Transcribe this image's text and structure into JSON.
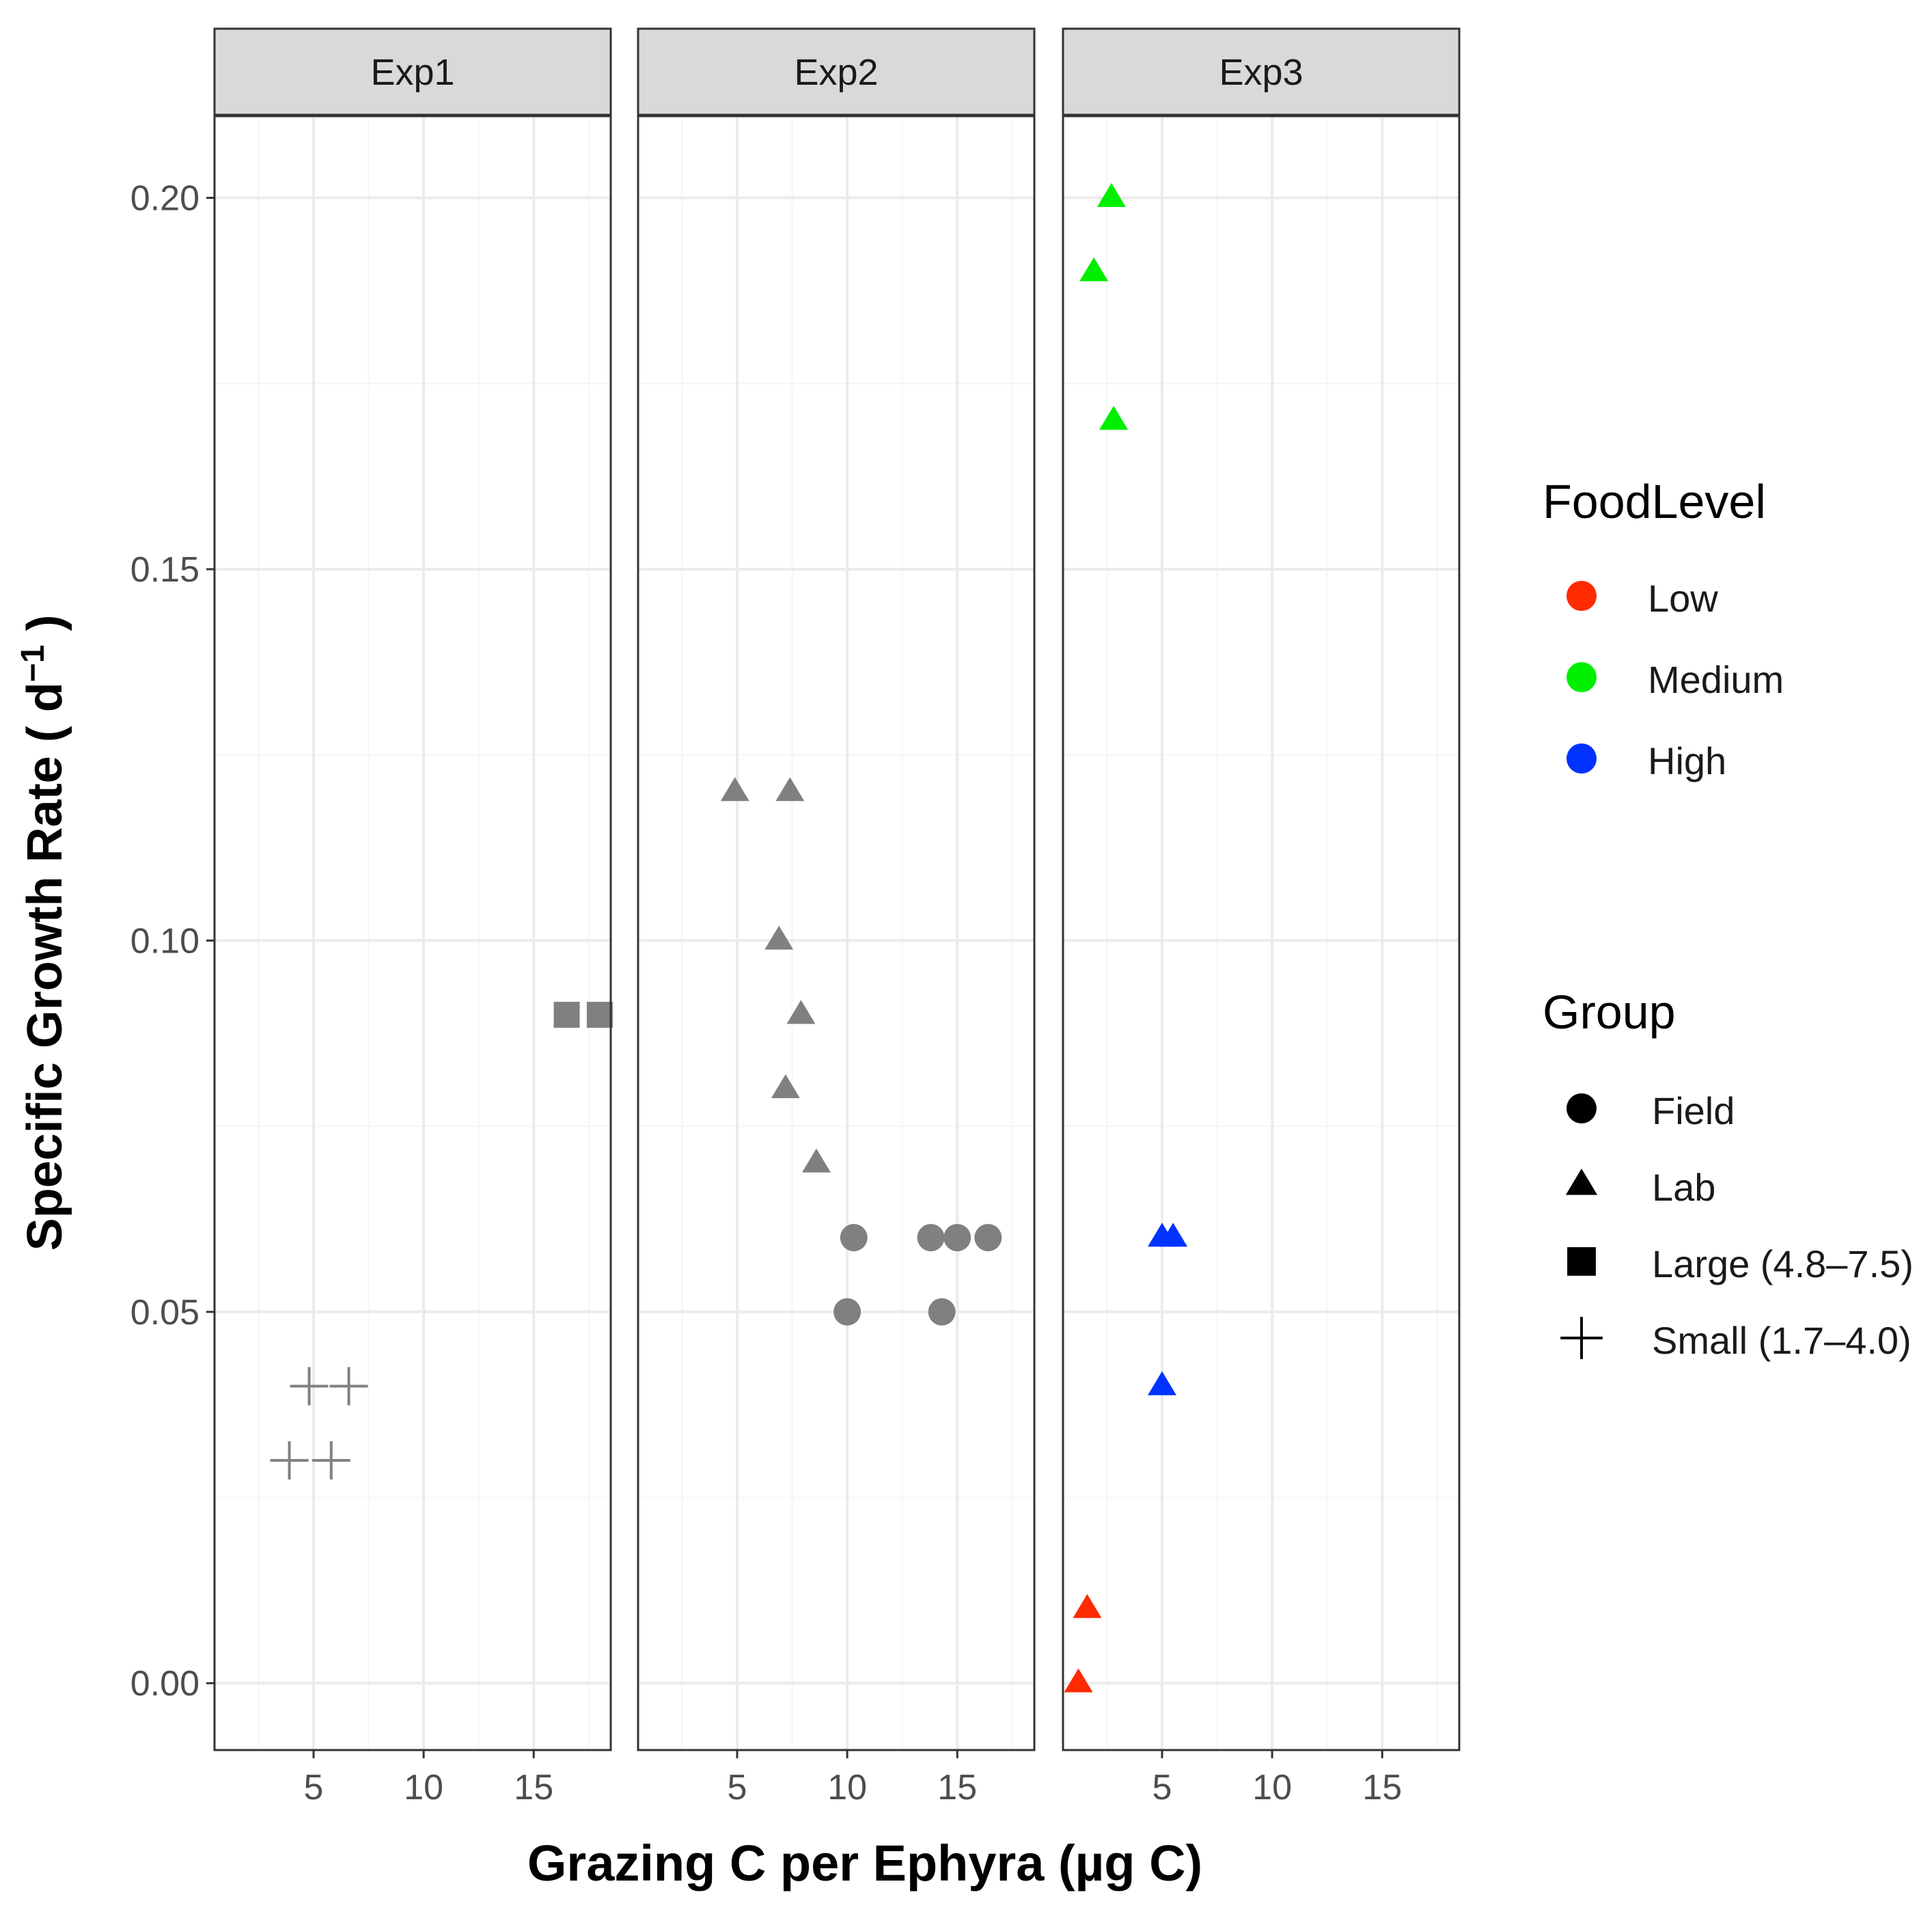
{
  "chart_data": {
    "type": "scatter",
    "title": "",
    "xlabel": "Grazing C per Ephyra (µg C)",
    "ylabel_main": "Specific Growth Rate ( d",
    "ylabel_sup": "−1",
    "ylabel_close": " )",
    "xlim": [
      0.5,
      18.5
    ],
    "ylim": [
      -0.009,
      0.211
    ],
    "x_ticks": [
      5,
      10,
      15
    ],
    "x_tick_labels": [
      "5",
      "10",
      "15"
    ],
    "y_ticks": [
      0,
      0.05,
      0.1,
      0.15,
      0.2
    ],
    "y_tick_labels": [
      "0.00",
      "0.05",
      "0.10",
      "0.15",
      "0.20"
    ],
    "grid": true,
    "colors": {
      "gray": "#808080",
      "Low": "#ff2a00",
      "Medium": "#00ee00",
      "High": "#0033ff",
      "strip_fill": "#d9d9d9",
      "grid_major": "#ebebeb",
      "grid_minor": "#f5f5f5"
    },
    "facets": [
      {
        "name": "Exp1",
        "points": [
          {
            "x": 16.5,
            "y": 0.09,
            "group": "Large (4.8–7.5)",
            "food": null
          },
          {
            "x": 18.0,
            "y": 0.09,
            "group": "Large (4.8–7.5)",
            "food": null
          },
          {
            "x": 4.8,
            "y": 0.04,
            "group": "Small (1.7–4.0)",
            "food": null
          },
          {
            "x": 6.6,
            "y": 0.04,
            "group": "Small (1.7–4.0)",
            "food": null
          },
          {
            "x": 3.9,
            "y": 0.03,
            "group": "Small (1.7–4.0)",
            "food": null
          },
          {
            "x": 5.8,
            "y": 0.03,
            "group": "Small (1.7–4.0)",
            "food": null
          }
        ]
      },
      {
        "name": "Exp2",
        "points": [
          {
            "x": 4.9,
            "y": 0.12,
            "group": "Lab",
            "food": null
          },
          {
            "x": 7.4,
            "y": 0.12,
            "group": "Lab",
            "food": null
          },
          {
            "x": 6.9,
            "y": 0.1,
            "group": "Lab",
            "food": null
          },
          {
            "x": 7.9,
            "y": 0.09,
            "group": "Lab",
            "food": null
          },
          {
            "x": 7.2,
            "y": 0.08,
            "group": "Lab",
            "food": null
          },
          {
            "x": 8.6,
            "y": 0.07,
            "group": "Lab",
            "food": null
          },
          {
            "x": 10.3,
            "y": 0.06,
            "group": "Field",
            "food": null
          },
          {
            "x": 13.8,
            "y": 0.06,
            "group": "Field",
            "food": null
          },
          {
            "x": 15.0,
            "y": 0.06,
            "group": "Field",
            "food": null
          },
          {
            "x": 16.4,
            "y": 0.06,
            "group": "Field",
            "food": null
          },
          {
            "x": 10.0,
            "y": 0.05,
            "group": "Field",
            "food": null
          },
          {
            "x": 14.3,
            "y": 0.05,
            "group": "Field",
            "food": null
          }
        ]
      },
      {
        "name": "Exp3",
        "points": [
          {
            "x": 2.7,
            "y": 0.2,
            "group": "Lab",
            "food": "Medium"
          },
          {
            "x": 1.9,
            "y": 0.19,
            "group": "Lab",
            "food": "Medium"
          },
          {
            "x": 2.8,
            "y": 0.17,
            "group": "Lab",
            "food": "Medium"
          },
          {
            "x": 5.0,
            "y": 0.06,
            "group": "Lab",
            "food": "High"
          },
          {
            "x": 5.5,
            "y": 0.06,
            "group": "Lab",
            "food": "High"
          },
          {
            "x": 5.0,
            "y": 0.04,
            "group": "Lab",
            "food": "High"
          },
          {
            "x": 1.6,
            "y": 0.01,
            "group": "Lab",
            "food": "Low"
          },
          {
            "x": 1.2,
            "y": 0.0,
            "group": "Lab",
            "food": "Low"
          }
        ]
      }
    ],
    "legends": [
      {
        "title": "FoodLevel",
        "entries": [
          {
            "label": "Low",
            "shape": "circle",
            "color": "#ff2a00"
          },
          {
            "label": "Medium",
            "shape": "circle",
            "color": "#00ee00"
          },
          {
            "label": "High",
            "shape": "circle",
            "color": "#0033ff"
          }
        ]
      },
      {
        "title": "Group",
        "entries": [
          {
            "label": "Field",
            "shape": "circle",
            "color": "#000000"
          },
          {
            "label": "Lab",
            "shape": "triangle",
            "color": "#000000"
          },
          {
            "label": "Large (4.8–7.5)",
            "shape": "square",
            "color": "#000000"
          },
          {
            "label": "Small (1.7–4.0)",
            "shape": "plus",
            "color": "#000000"
          }
        ]
      }
    ]
  }
}
